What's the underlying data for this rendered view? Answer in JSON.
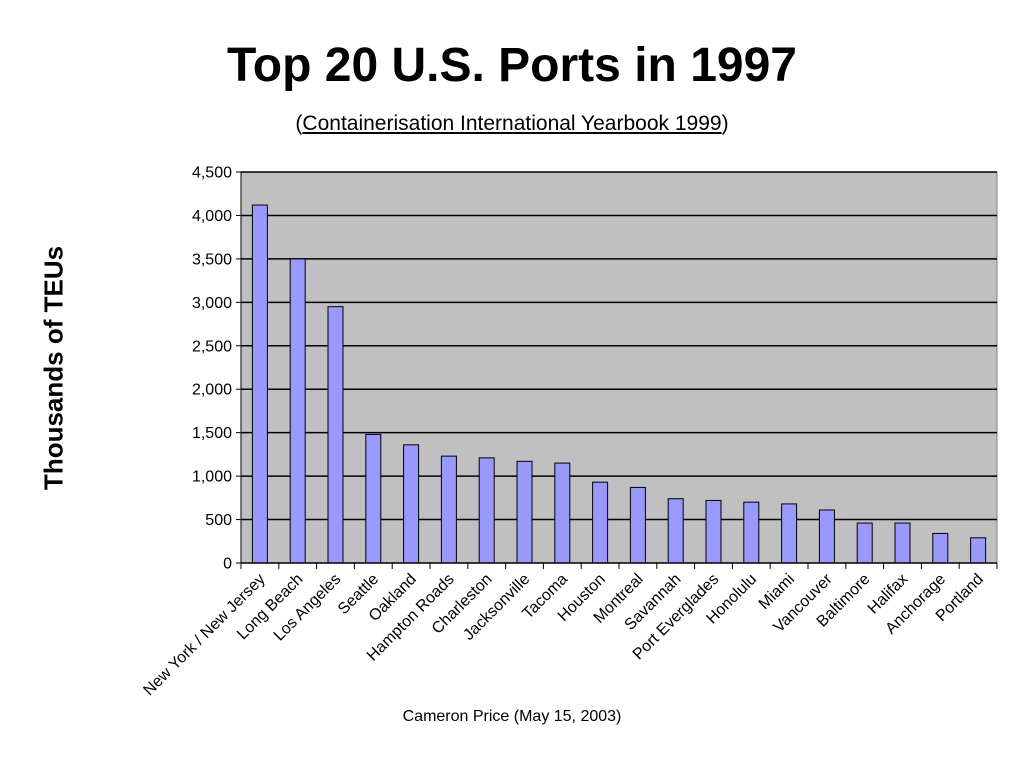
{
  "chart_data": {
    "type": "bar",
    "title": "Top 20 U.S. Ports in 1997",
    "subtitle": {
      "open": "(",
      "source": "Containerisation International Yearbook 1999",
      "close": ")"
    },
    "ylabel": "Thousands of TEUs",
    "xlabel": "",
    "footer": "Cameron Price (May 15, 2003)",
    "ylim": [
      0,
      4500
    ],
    "yticks": [
      0,
      500,
      1000,
      1500,
      2000,
      2500,
      3000,
      3500,
      4000,
      4500
    ],
    "ytick_labels": [
      "0",
      "500",
      "1,000",
      "1,500",
      "2,000",
      "2,500",
      "3,000",
      "3,500",
      "4,000",
      "4,500"
    ],
    "grid": true,
    "categories": [
      "New York / New Jersey",
      "Long Beach",
      "Los Angeles",
      "Seattle",
      "Oakland",
      "Hampton Roads",
      "Charleston",
      "Jacksonville",
      "Tacoma",
      "Houston",
      "Montreal",
      "Savannah",
      "Port Everglades",
      "Honolulu",
      "Miami",
      "Vancouver",
      "Baltimore",
      "Halifax",
      "Anchorage",
      "Portland"
    ],
    "values": [
      4120,
      3500,
      2950,
      1480,
      1360,
      1230,
      1210,
      1170,
      1150,
      930,
      870,
      740,
      720,
      700,
      680,
      610,
      460,
      460,
      340,
      290
    ],
    "colors": {
      "bar_fill": "#9999ff",
      "bar_stroke": "#000000",
      "plot_background": "#c0c0c0",
      "grid": "#000000"
    }
  }
}
